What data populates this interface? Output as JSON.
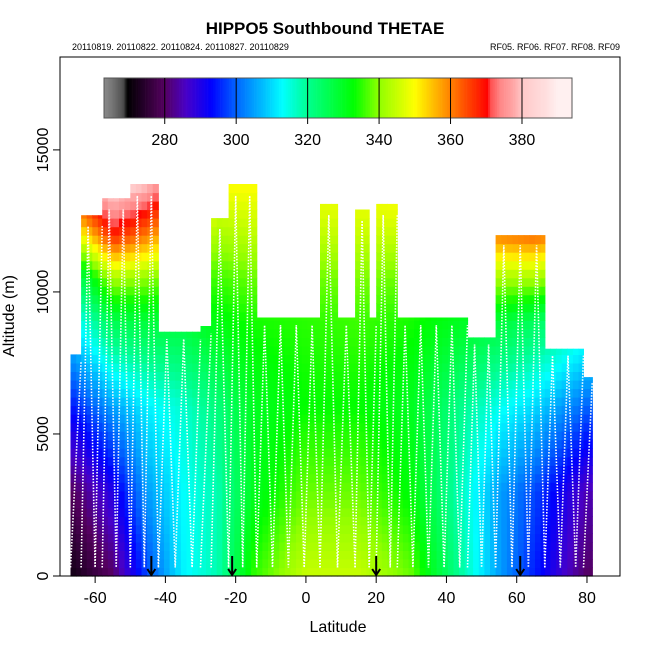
{
  "chart_data": {
    "type": "heatmap",
    "title": "HIPPO5 Southbound THETAE",
    "subtitle_left": "20110819. 20110822. 20110824. 20110827. 20110829",
    "subtitle_right": "RF05. RF06. RF07. RF08. RF09",
    "xlabel": "Latitude",
    "ylabel": "Altitude (m)",
    "xlim": [
      -70,
      89.4
    ],
    "ylim": [
      0,
      18270
    ],
    "xticks": [
      -60,
      -40,
      -20,
      0,
      20,
      40,
      60,
      80
    ],
    "xtick_labels": [
      "-60",
      "-40",
      "-20",
      "0",
      "20",
      "40",
      "60",
      "80"
    ],
    "yticks": [
      0,
      5000,
      10000,
      15000
    ],
    "ytick_labels": [
      "0",
      "5000",
      "10000",
      "15000"
    ],
    "colorbar": {
      "range": [
        263,
        394
      ],
      "ticks": [
        280,
        300,
        320,
        340,
        360,
        380
      ],
      "tick_labels": [
        "280",
        "300",
        "320",
        "340",
        "360",
        "380"
      ],
      "stops": [
        [
          263,
          "#8a8a8a"
        ],
        [
          266,
          "#6e6e6e"
        ],
        [
          268.5,
          "#4a4a4a"
        ],
        [
          269.5,
          "#000000"
        ],
        [
          280,
          "#550060"
        ],
        [
          286,
          "#4800c8"
        ],
        [
          293,
          "#0000ff"
        ],
        [
          300,
          "#0064ff"
        ],
        [
          313,
          "#00ffff"
        ],
        [
          320,
          "#00ff90"
        ],
        [
          333,
          "#00ff00"
        ],
        [
          340,
          "#90ff00"
        ],
        [
          350,
          "#ffff00"
        ],
        [
          360,
          "#ff8000"
        ],
        [
          370.5,
          "#ff0000"
        ],
        [
          371,
          "#ff4a4a"
        ],
        [
          374,
          "#ff8888"
        ],
        [
          378,
          "#ffaaaa"
        ],
        [
          380,
          "#ffc8c8"
        ],
        [
          387,
          "#ffe0e0"
        ],
        [
          390,
          "#fff0f0"
        ]
      ]
    },
    "grid_lat": [
      -66,
      -55,
      -45,
      -35,
      -25,
      -15,
      0,
      15,
      30,
      45,
      55,
      65,
      80
    ],
    "grid_alt": [
      0,
      3000,
      6000,
      9000,
      10500,
      12000,
      13800
    ],
    "thetae_grid": [
      [
        272,
        280,
        295,
        312,
        322,
        345,
        375
      ],
      [
        280,
        290,
        305,
        326,
        342,
        368,
        385
      ],
      [
        298,
        305,
        312,
        328,
        340,
        360,
        380
      ],
      [
        312,
        313,
        316,
        328,
        336,
        350,
        365
      ],
      [
        318,
        318,
        322,
        332,
        336,
        342,
        350
      ],
      [
        335,
        330,
        330,
        334,
        338,
        344,
        350
      ],
      [
        345,
        338,
        333,
        335,
        338,
        344,
        350
      ],
      [
        345,
        338,
        333,
        336,
        339,
        345,
        350
      ],
      [
        338,
        332,
        330,
        334,
        338,
        345,
        352
      ],
      [
        318,
        316,
        320,
        330,
        340,
        352,
        362
      ],
      [
        305,
        305,
        314,
        328,
        342,
        360,
        372
      ],
      [
        295,
        298,
        310,
        325,
        342,
        362,
        375
      ],
      [
        280,
        285,
        300,
        318,
        335,
        355,
        370
      ]
    ],
    "profile_ceilings": [
      {
        "lat_from": -67,
        "lat_to": -64,
        "max_alt": 7800
      },
      {
        "lat_from": -64,
        "lat_to": -58,
        "max_alt": 12700
      },
      {
        "lat_from": -58,
        "lat_to": -50,
        "max_alt": 13300
      },
      {
        "lat_from": -50,
        "lat_to": -42,
        "max_alt": 13800
      },
      {
        "lat_from": -42,
        "lat_to": -30,
        "max_alt": 8600
      },
      {
        "lat_from": -30,
        "lat_to": -27,
        "max_alt": 8800
      },
      {
        "lat_from": -27,
        "lat_to": -22,
        "max_alt": 12600
      },
      {
        "lat_from": -22,
        "lat_to": -14,
        "max_alt": 13800
      },
      {
        "lat_from": -14,
        "lat_to": 4,
        "max_alt": 9100
      },
      {
        "lat_from": 4,
        "lat_to": 9,
        "max_alt": 13100
      },
      {
        "lat_from": 9,
        "lat_to": 14,
        "max_alt": 9100
      },
      {
        "lat_from": 14,
        "lat_to": 18,
        "max_alt": 12900
      },
      {
        "lat_from": 18,
        "lat_to": 20,
        "max_alt": 9100
      },
      {
        "lat_from": 20,
        "lat_to": 26,
        "max_alt": 13100
      },
      {
        "lat_from": 26,
        "lat_to": 46,
        "max_alt": 9100
      },
      {
        "lat_from": 46,
        "lat_to": 54,
        "max_alt": 8400
      },
      {
        "lat_from": 54,
        "lat_to": 68,
        "max_alt": 12000
      },
      {
        "lat_from": 68,
        "lat_to": 79,
        "max_alt": 8000
      },
      {
        "lat_from": 79,
        "lat_to": 81.5,
        "max_alt": 7000
      }
    ],
    "segment_boundary_arrows_lat": [
      -44,
      -21,
      20,
      61
    ]
  }
}
